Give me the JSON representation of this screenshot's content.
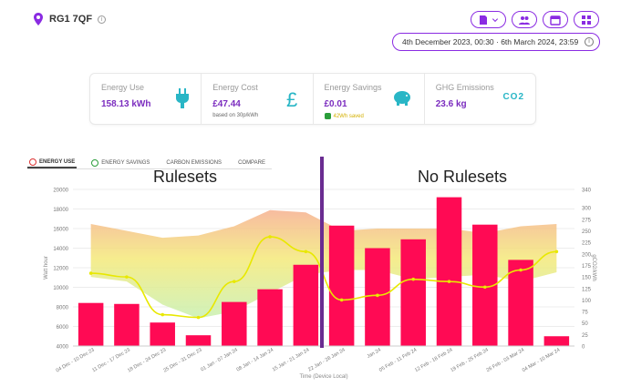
{
  "location": {
    "label": "RG1 7QF"
  },
  "date_range": {
    "label": "4th December 2023, 00:30  ·  6th March 2024, 23:59"
  },
  "cards": {
    "energy_use": {
      "title": "Energy Use",
      "value": "158.13 kWh"
    },
    "energy_cost": {
      "title": "Energy Cost",
      "value": "£47.44",
      "sub": "based on 30p/kWh"
    },
    "energy_savings": {
      "title": "Energy Savings",
      "value": "£0.01",
      "sub": "42Wh saved"
    },
    "ghg": {
      "title": "GHG Emissions",
      "value": "23.6 kg",
      "icon_text": "CO2"
    }
  },
  "tabs": [
    {
      "label": "ENERGY USE"
    },
    {
      "label": "ENERGY SAVINGS"
    },
    {
      "label": "CARBON EMISSIONS"
    },
    {
      "label": "COMPARE"
    }
  ],
  "headings": {
    "left": "Rulesets",
    "right": "No Rulesets"
  },
  "colors": {
    "accent": "#8a2be2",
    "bar": "#ff0a54",
    "line": "#e8e800",
    "divider": "#6a2c91"
  },
  "chart_data": {
    "type": "bar",
    "categories": [
      "04 Dec - 10 Dec 23",
      "11 Dec - 17 Dec 23",
      "18 Dec - 24 Dec 23",
      "25 Dec - 31 Dec 23",
      "01 Jan - 07 Jan 24",
      "08 Jan - 14 Jan 24",
      "15 Jan - 21 Jan 24",
      "22 Jan - 28 Jan 24",
      "29 Jan - 04 Feb 24",
      "05 Feb - 11 Feb 24",
      "12 Feb - 18 Feb 24",
      "19 Feb - 25 Feb 24",
      "26 Feb - 03 Mar 24",
      "04 Mar - 10 Mar 24"
    ],
    "x_tick_labels": [
      "04 Dec - 10 Dec 23",
      "11 Dec - 17 Dec 23",
      "18 Dec - 24 Dec 23",
      "25 Dec - 31 Dec 23",
      "01 Jan - 07 Jan 24",
      "08 Jan - 14 Jan 24",
      "15 Jan - 21 Jan 24",
      "22 Jan - 28 Jan 24",
      "Jan 24",
      "05 Feb - 11 Feb 24",
      "12 Feb - 18 Feb 24",
      "19 Feb - 25 Feb 24",
      "26 Feb - 03 Mar 24",
      "04 Mar - 10 Mar 24"
    ],
    "series": [
      {
        "values": [
          8400,
          8300,
          6400,
          5100,
          8500,
          9800,
          12300,
          16300,
          14000,
          14900,
          19200,
          16400,
          12800,
          5000
        ]
      },
      {
        "values": [
          158,
          150,
          68,
          62,
          140,
          237,
          205,
          100,
          110,
          145,
          140,
          128,
          165,
          205
        ]
      }
    ],
    "xlabel": "Time (Device Local)",
    "ylabel": "Watt hour",
    "y2label": "gCO2/kWh",
    "ylim": [
      4000,
      20000
    ],
    "y2lim": [
      0,
      340
    ],
    "yticks": [
      4000,
      6000,
      8000,
      10000,
      12000,
      14000,
      16000,
      18000,
      20000
    ],
    "y2ticks": [
      0,
      25,
      50,
      75,
      100,
      125,
      150,
      175,
      200,
      225,
      250,
      275,
      300,
      340
    ],
    "band_lower": [
      150,
      140,
      90,
      60,
      75,
      115,
      155,
      165,
      165,
      145,
      150,
      155,
      140,
      160
    ],
    "band_upper": [
      265,
      250,
      235,
      240,
      260,
      295,
      290,
      250,
      255,
      255,
      255,
      245,
      260,
      265
    ],
    "grid": true
  }
}
